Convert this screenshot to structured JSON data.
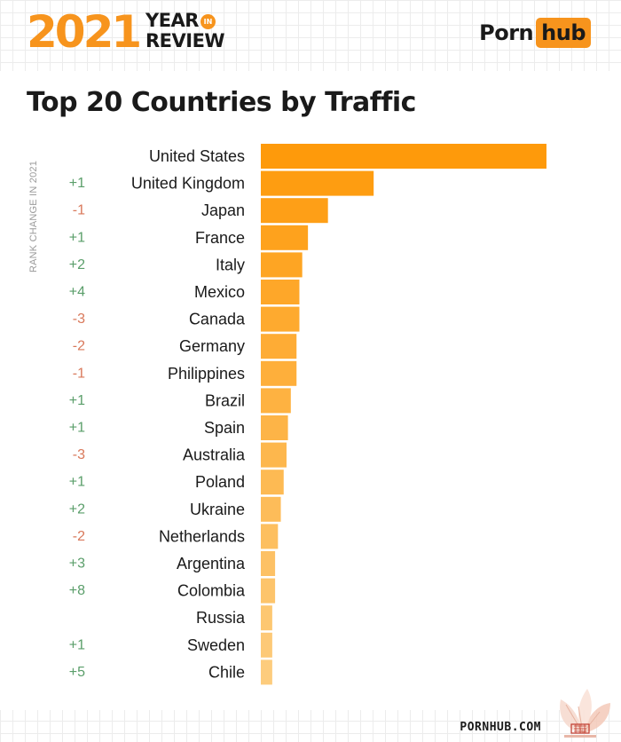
{
  "header": {
    "year": "2021",
    "year_word": "YEAR",
    "in_word": "IN",
    "review_word": "REVIEW",
    "brand_part1": "Porn",
    "brand_part2": "hub"
  },
  "footer": {
    "url": "PORNHUB.COM"
  },
  "colors": {
    "bar_dark": "#fe9a0b",
    "bar_light": "#fdcc7d",
    "positive": "#5a9e6a",
    "negative": "#d9785a",
    "text": "#1a1a1a"
  },
  "chart_data": {
    "type": "bar",
    "orientation": "horizontal",
    "title": "Top 20 Countries by Traffic",
    "side_label": "RANK CHANGE IN 2021",
    "categories": [
      "United States",
      "United Kingdom",
      "Japan",
      "France",
      "Italy",
      "Mexico",
      "Canada",
      "Germany",
      "Philippines",
      "Brazil",
      "Spain",
      "Australia",
      "Poland",
      "Ukraine",
      "Netherlands",
      "Argentina",
      "Colombia",
      "Russia",
      "Sweden",
      "Chile"
    ],
    "rank_change": [
      "",
      "+1",
      "-1",
      "+1",
      "+2",
      "+4",
      "-3",
      "-2",
      "-1",
      "+1",
      "+1",
      "-3",
      "+1",
      "+2",
      "-2",
      "+3",
      "+8",
      "",
      "+1",
      "+5"
    ],
    "values": [
      100,
      39.5,
      23.5,
      16.5,
      14.5,
      13.5,
      13.5,
      12.5,
      12.5,
      10.5,
      9.5,
      9,
      8,
      7,
      6,
      5,
      5,
      4,
      4,
      4
    ],
    "grid": false,
    "axis": false
  }
}
